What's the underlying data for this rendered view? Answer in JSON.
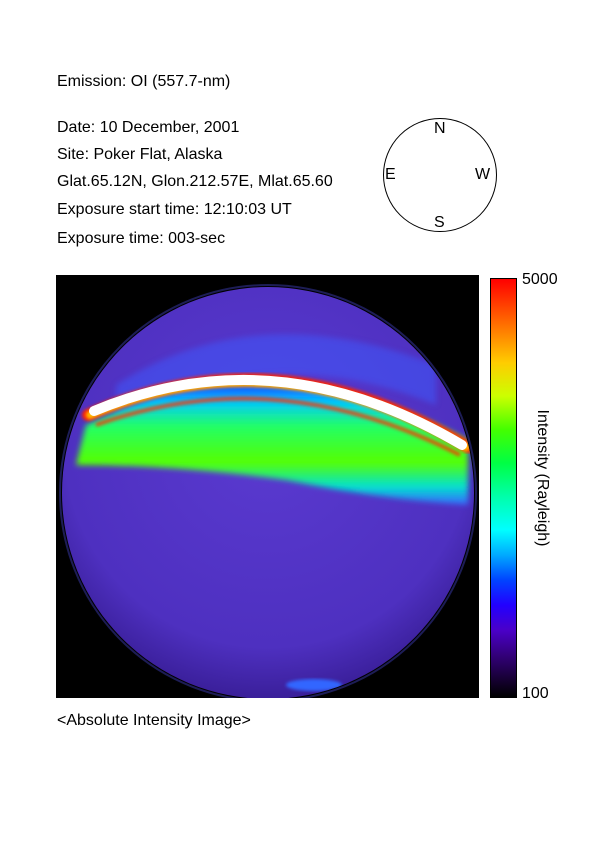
{
  "header": {
    "emission": "Emission: OI (557.7-nm)",
    "date": "Date: 10 December, 2001",
    "site": "Site: Poker Flat, Alaska",
    "coordinates": "Glat.65.12N, Glon.212.57E, Mlat.65.60",
    "exposure_start": "Exposure start time: 12:10:03 UT",
    "exposure_time": "Exposure time: 003-sec"
  },
  "compass": {
    "north": "N",
    "south": "S",
    "east": "E",
    "west": "W"
  },
  "colorbar": {
    "max_label": "5000",
    "min_label": "100",
    "title": "Intensity (Rayleigh)",
    "colors": {
      "high": "#ff0000",
      "mid": "#00ff44",
      "low": "#000000"
    }
  },
  "caption": "<Absolute Intensity Image>"
}
